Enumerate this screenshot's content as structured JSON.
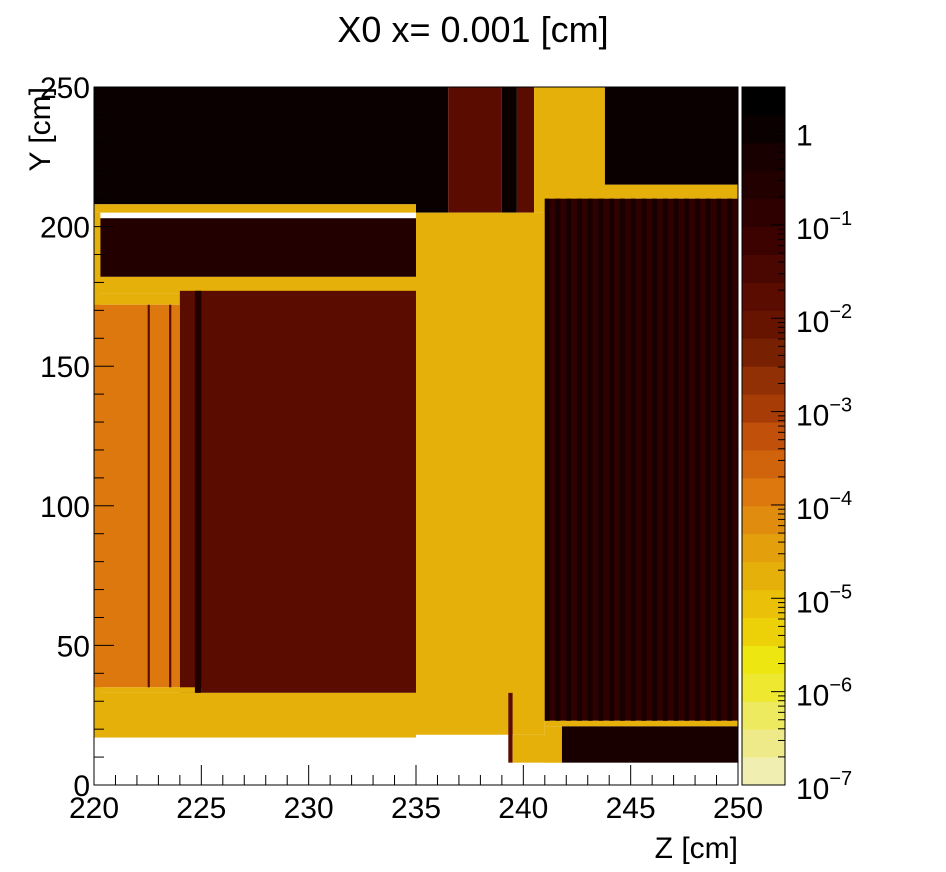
{
  "chart_data": {
    "type": "heatmap",
    "title": "X0 x=  0.001 [cm]",
    "xlabel": "Z [cm]",
    "ylabel": "Y [cm]",
    "xlim": [
      220,
      250
    ],
    "ylim": [
      0,
      250
    ],
    "x_ticks": [
      {
        "value": 220,
        "label": "220"
      },
      {
        "value": 225,
        "label": "225"
      },
      {
        "value": 230,
        "label": "230"
      },
      {
        "value": 235,
        "label": "235"
      },
      {
        "value": 240,
        "label": "240"
      },
      {
        "value": 245,
        "label": "245"
      },
      {
        "value": 250,
        "label": "250"
      }
    ],
    "y_ticks": [
      {
        "value": 0,
        "label": "0"
      },
      {
        "value": 50,
        "label": "50"
      },
      {
        "value": 100,
        "label": "100"
      },
      {
        "value": 150,
        "label": "150"
      },
      {
        "value": 200,
        "label": "200"
      },
      {
        "value": 250,
        "label": "250"
      }
    ],
    "z_scale": "log",
    "zlim": [
      1e-07,
      3
    ],
    "z_ticks": [
      {
        "value": 1,
        "base": "1",
        "exp": ""
      },
      {
        "value": 0.1,
        "base": "10",
        "exp": "−1"
      },
      {
        "value": 0.01,
        "base": "10",
        "exp": "−2"
      },
      {
        "value": 0.001,
        "base": "10",
        "exp": "−3"
      },
      {
        "value": 0.0001,
        "base": "10",
        "exp": "−4"
      },
      {
        "value": 1e-05,
        "base": "10",
        "exp": "−5"
      },
      {
        "value": 1e-06,
        "base": "10",
        "exp": "−6"
      },
      {
        "value": 1e-07,
        "base": "10",
        "exp": "−7"
      }
    ],
    "palette": [
      "#f0eeb0",
      "#eeea8a",
      "#eeea60",
      "#eee830",
      "#eee610",
      "#ecd008",
      "#eac008",
      "#e6b00a",
      "#e4a00c",
      "#e08c0e",
      "#dc780e",
      "#d0640c",
      "#c0500a",
      "#a83c06",
      "#903004",
      "#782002",
      "#661400",
      "#5a0c00",
      "#4a0600",
      "#3c0200",
      "#2e0000",
      "#220000",
      "#180000",
      "#0a0000",
      "#000000"
    ],
    "cells": [
      {
        "z0": 220,
        "z1": 235,
        "y0": 208,
        "y1": 250,
        "v": 0.8
      },
      {
        "z0": 235,
        "z1": 236.5,
        "y0": 205,
        "y1": 250,
        "v": 0.8
      },
      {
        "z0": 236.5,
        "z1": 239,
        "y0": 205,
        "y1": 250,
        "v": 0.02
      },
      {
        "z0": 239,
        "z1": 239.7,
        "y0": 205,
        "y1": 250,
        "v": 0.8
      },
      {
        "z0": 239.7,
        "z1": 240.5,
        "y0": 205,
        "y1": 250,
        "v": 0.02
      },
      {
        "z0": 240.5,
        "z1": 243.8,
        "y0": 205,
        "y1": 250,
        "v": 2e-05
      },
      {
        "z0": 243.8,
        "z1": 250,
        "y0": 215,
        "y1": 250,
        "v": 0.8
      },
      {
        "z0": 220,
        "z1": 235,
        "y0": 205,
        "y1": 208,
        "v": 2e-05
      },
      {
        "z0": 220,
        "z1": 235,
        "y0": 182,
        "y1": 203,
        "v": 0.3
      },
      {
        "z0": 220,
        "z1": 220.3,
        "y0": 17,
        "y1": 205,
        "v": 2e-05
      },
      {
        "z0": 220,
        "z1": 235,
        "y0": 176,
        "y1": 182,
        "v": 2e-05
      },
      {
        "z0": 220,
        "z1": 225,
        "y0": 172,
        "y1": 176,
        "v": 2e-05
      },
      {
        "z0": 220,
        "z1": 224,
        "y0": 35,
        "y1": 172,
        "v": 0.0001
      },
      {
        "z0": 224,
        "z1": 235,
        "y0": 33,
        "y1": 177,
        "v": 0.02
      },
      {
        "z0": 220,
        "z1": 225,
        "y0": 33,
        "y1": 35,
        "v": 2e-05
      },
      {
        "z0": 220,
        "z1": 235,
        "y0": 17,
        "y1": 33,
        "v": 2e-05
      },
      {
        "z0": 235,
        "z1": 241,
        "y0": 18,
        "y1": 205,
        "v": 2e-05
      },
      {
        "z0": 239.3,
        "z1": 239.5,
        "y0": 8,
        "y1": 33,
        "v": 0.02
      },
      {
        "z0": 239.5,
        "z1": 241.8,
        "y0": 8,
        "y1": 18,
        "v": 2e-05
      },
      {
        "z0": 241,
        "z1": 250,
        "y0": 210,
        "y1": 215,
        "v": 2e-05
      },
      {
        "z0": 241,
        "z1": 250,
        "y0": 23,
        "y1": 210,
        "v": 0.1
      },
      {
        "z0": 241,
        "z1": 250,
        "y0": 21,
        "y1": 23,
        "v": 2e-05
      },
      {
        "z0": 241,
        "z1": 241.8,
        "y0": 8,
        "y1": 21,
        "v": 2e-05
      },
      {
        "z0": 241.8,
        "z1": 250,
        "y0": 8,
        "y1": 21,
        "v": 0.4
      }
    ],
    "stripes": [
      {
        "z0": 241,
        "z1": 250,
        "y0": 23,
        "y1": 210,
        "pitch": 0.5,
        "v": 0.6
      },
      {
        "z0": 224.7,
        "z1": 225,
        "y0": 33,
        "y1": 177,
        "pitch": 0,
        "v": 0.3
      },
      {
        "z0": 222.5,
        "z1": 222.6,
        "y0": 35,
        "y1": 172,
        "pitch": 0,
        "v": 0.02
      },
      {
        "z0": 223.5,
        "z1": 223.6,
        "y0": 35,
        "y1": 172,
        "pitch": 0,
        "v": 0.02
      }
    ]
  }
}
